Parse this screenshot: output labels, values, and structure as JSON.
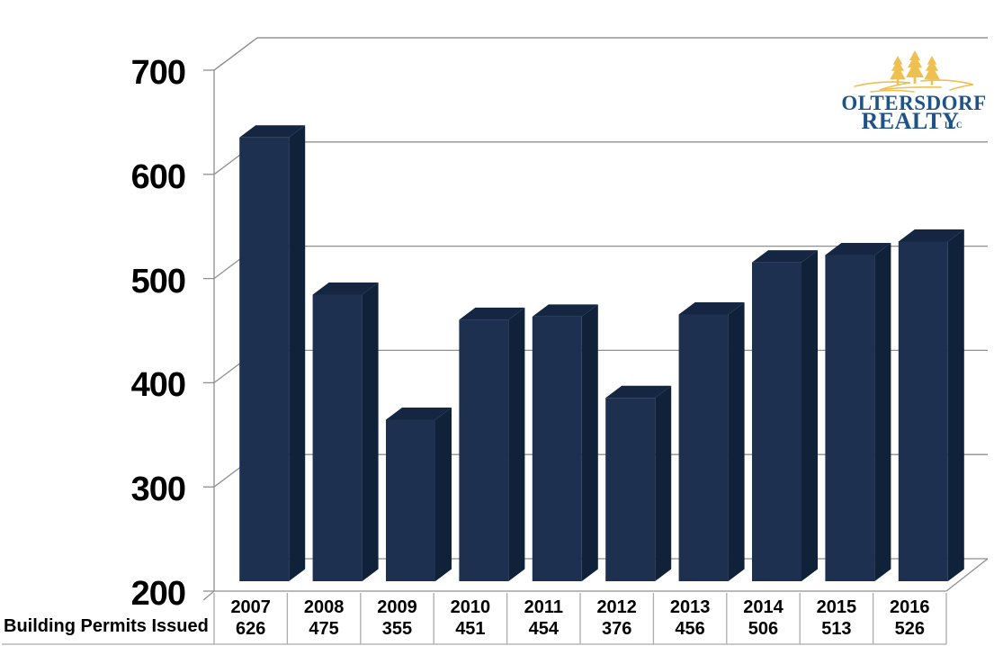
{
  "page": {
    "background": "#ffffff"
  },
  "logo": {
    "line1": "OLTERSDORF",
    "line2": "REALTY",
    "suffix": "LLC",
    "text_color": "#1e5288",
    "tree_color": "#eec050"
  },
  "chart_data": {
    "type": "bar",
    "style": "3d-column",
    "title": "",
    "series_label": "Building Permits Issued",
    "categories": [
      "2007",
      "2008",
      "2009",
      "2010",
      "2011",
      "2012",
      "2013",
      "2014",
      "2015",
      "2016"
    ],
    "values": [
      626,
      475,
      355,
      451,
      454,
      376,
      456,
      506,
      513,
      526
    ],
    "ylim": [
      200,
      700
    ],
    "ytick_interval": 100,
    "yticks": [
      200,
      300,
      400,
      500,
      600,
      700
    ],
    "grid": true,
    "legend": "none",
    "colors": {
      "bar_front": "#1d304f",
      "bar_side": "#10213a",
      "bar_top": "#142641",
      "axis_line": "#8f8f8f",
      "table_border": "#ababab",
      "label_text": "#000000"
    }
  }
}
